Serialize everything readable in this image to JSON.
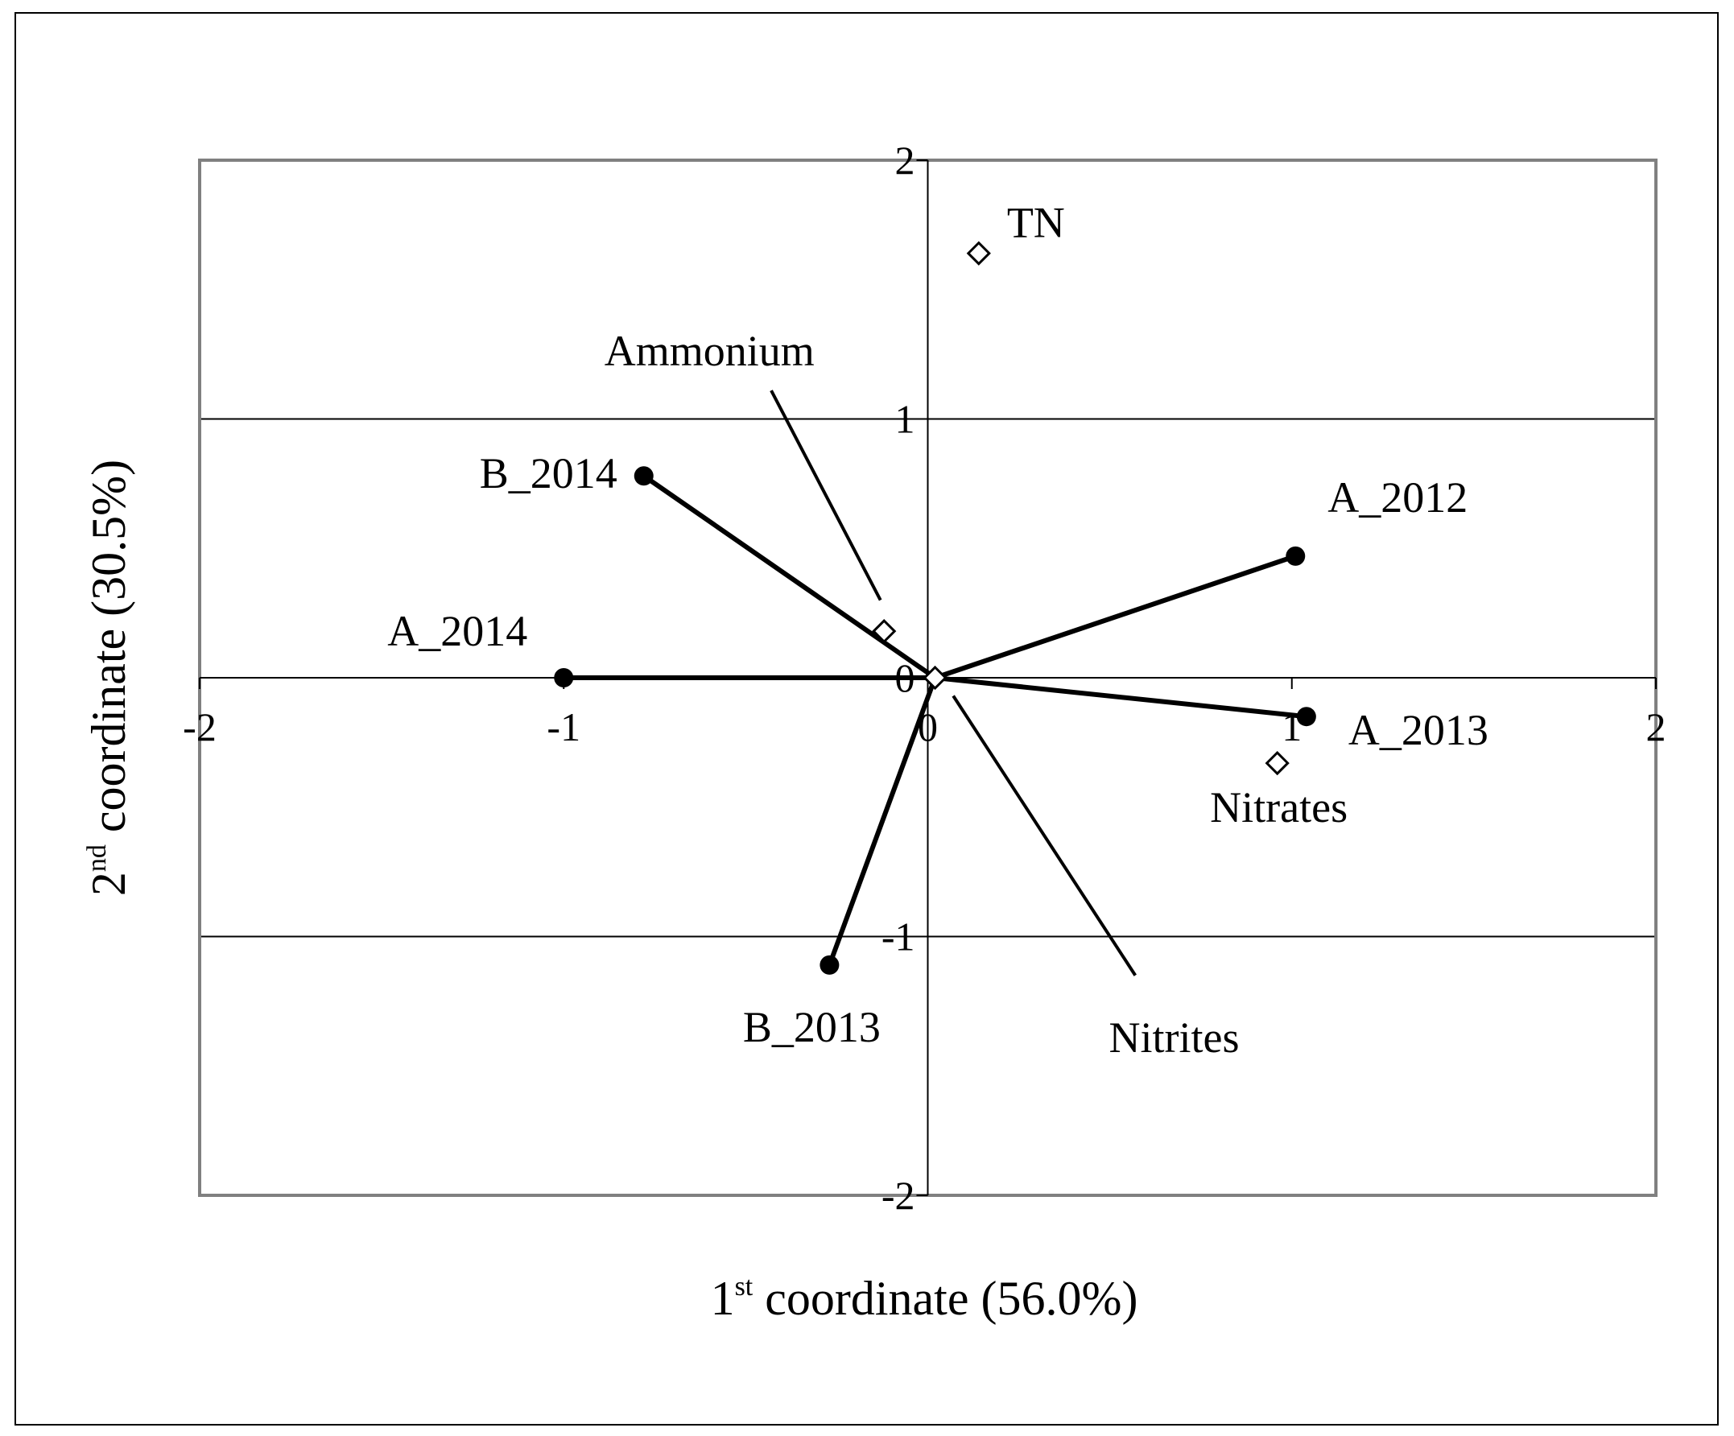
{
  "chart_data": {
    "type": "scatter",
    "xlabel": {
      "prefix": "1",
      "sup": "st",
      "text": " coordinate (56.0%)"
    },
    "ylabel": {
      "prefix": "2",
      "sup": "nd",
      "text": " coordinate (30.5%)"
    },
    "xlim": [
      -2,
      2
    ],
    "ylim": [
      -2,
      2
    ],
    "x_ticks": [
      -2,
      -1,
      0,
      1,
      2
    ],
    "y_ticks": [
      -2,
      -1,
      0,
      1,
      2
    ],
    "x_tick_labels": [
      "-2",
      "-1",
      "0",
      "1",
      "2"
    ],
    "y_tick_labels": [
      "-2",
      "-1",
      "0",
      "1",
      "2"
    ],
    "grid": "horizontal",
    "origin": [
      0.02,
      0.0
    ],
    "series": [
      {
        "marker": "filled-circle",
        "connected_to_origin": true,
        "points": [
          {
            "label": "A_2012",
            "x": 1.01,
            "y": 0.47
          },
          {
            "label": "A_2013",
            "x": 1.04,
            "y": -0.15
          },
          {
            "label": "A_2014",
            "x": -1.0,
            "y": 0.0
          },
          {
            "label": "B_2013",
            "x": -0.27,
            "y": -1.11
          },
          {
            "label": "B_2014",
            "x": -0.78,
            "y": 0.78
          }
        ]
      },
      {
        "marker": "open-diamond",
        "connected_to_origin": false,
        "points": [
          {
            "label": "TN",
            "x": 0.14,
            "y": 1.64
          },
          {
            "label": "Ammonium",
            "x": -0.12,
            "y": 0.18
          },
          {
            "label": "Nitrates",
            "x": 0.96,
            "y": -0.33
          },
          {
            "label": "Nitrites",
            "x": 0.02,
            "y": 0.0
          }
        ]
      }
    ],
    "leader_lines": [
      {
        "label": "Ammonium",
        "from": [
          -0.43,
          1.11
        ],
        "to": [
          -0.13,
          0.3
        ]
      },
      {
        "label": "Nitrites",
        "from": [
          0.07,
          -0.07
        ],
        "to": [
          0.57,
          -1.15
        ]
      }
    ],
    "colors": {
      "frame": "#808080",
      "lines": "#000000",
      "markers": "#000000"
    }
  }
}
